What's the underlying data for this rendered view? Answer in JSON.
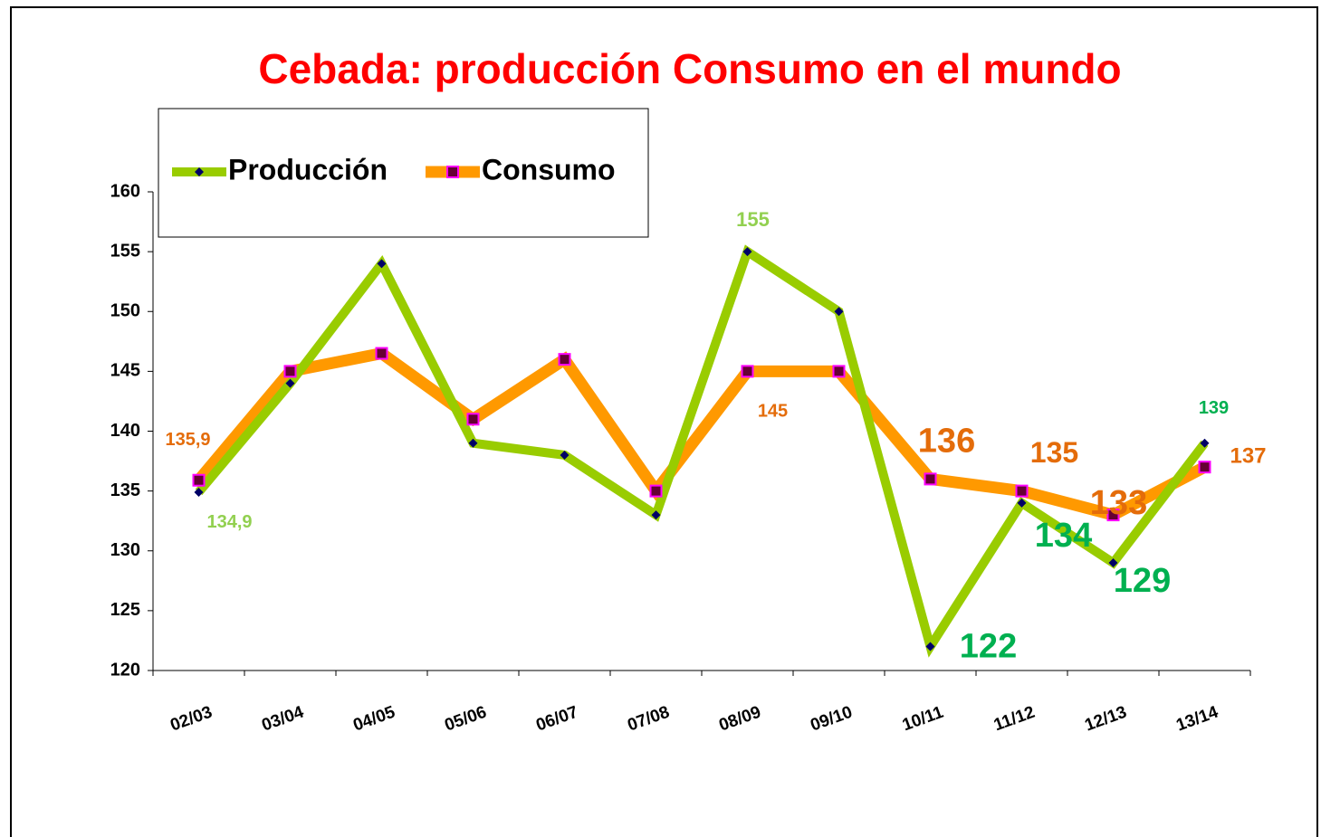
{
  "chart_data": {
    "type": "line",
    "title": "Cebada: producción Consumo en el mundo",
    "categories": [
      "02/03",
      "03/04",
      "04/05",
      "05/06",
      "06/07",
      "07/08",
      "08/09",
      "09/10",
      "10/11",
      "11/12",
      "12/13",
      "13/14"
    ],
    "series": [
      {
        "name": "Producción",
        "color": "#99cc00",
        "marker_color": "#000066",
        "values": [
          134.9,
          144,
          154,
          139,
          138,
          133,
          155,
          150,
          122,
          134,
          129,
          139
        ],
        "value_labels": [
          "134,9",
          null,
          null,
          null,
          null,
          null,
          "155",
          null,
          "122",
          "134",
          "129",
          "139"
        ]
      },
      {
        "name": "Consumo",
        "color": "#ff9900",
        "marker_color": "#660033",
        "values": [
          135.9,
          145,
          146.5,
          141,
          146,
          135,
          145,
          145,
          136,
          135,
          133,
          137
        ],
        "value_labels": [
          "135,9",
          null,
          null,
          null,
          null,
          null,
          "145",
          null,
          "136",
          "135",
          "133",
          "137"
        ]
      }
    ],
    "ylim": [
      120,
      160
    ],
    "yticks": [
      120,
      125,
      130,
      135,
      140,
      145,
      150,
      155,
      160
    ],
    "grid": false,
    "legend": "top-left"
  }
}
